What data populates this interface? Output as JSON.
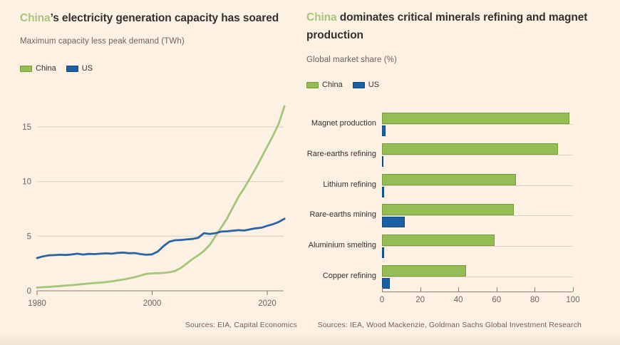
{
  "colors": {
    "background": "#fdf1e4",
    "heading_text": "#33302e",
    "muted_text": "#6b635b",
    "china_green": "#95bd55",
    "china_green_border": "#7a9a3b",
    "china_line_green": "#a4c57a",
    "title_highlight_green": "#a8c47c",
    "us_blue": "#1b5fa5",
    "us_blue_border": "#11497f",
    "us_line_blue": "#2a64a5",
    "gridline": "#ddd1c5",
    "axis_line": "#8a8075"
  },
  "chart_data": [
    {
      "type": "line",
      "title_highlight": "China",
      "title_rest": "’s electricity generation capacity has soared",
      "subtitle": "Maximum capacity less peak demand (TWh)",
      "legend": [
        "China",
        "US"
      ],
      "source": "Sources: EIA, Capital Economics",
      "x_start_year": 1980,
      "x_end_year": 2023,
      "x_ticks": [
        1980,
        2000,
        2020
      ],
      "y_ticks": [
        0,
        5,
        10,
        15
      ],
      "ylim": [
        0,
        17.5
      ],
      "grid": true,
      "series": [
        {
          "name": "China",
          "values": [
            0.3,
            0.33,
            0.36,
            0.4,
            0.44,
            0.48,
            0.52,
            0.57,
            0.62,
            0.67,
            0.72,
            0.75,
            0.8,
            0.87,
            0.95,
            1.04,
            1.14,
            1.25,
            1.4,
            1.55,
            1.6,
            1.62,
            1.64,
            1.7,
            1.82,
            2.1,
            2.5,
            2.9,
            3.25,
            3.65,
            4.2,
            5.0,
            5.8,
            6.6,
            7.6,
            8.6,
            9.4,
            10.3,
            11.2,
            12.2,
            13.2,
            14.2,
            15.3,
            16.9
          ]
        },
        {
          "name": "US",
          "values": [
            3.0,
            3.15,
            3.25,
            3.27,
            3.3,
            3.28,
            3.33,
            3.4,
            3.32,
            3.38,
            3.36,
            3.4,
            3.43,
            3.4,
            3.47,
            3.5,
            3.44,
            3.46,
            3.36,
            3.3,
            3.34,
            3.6,
            4.1,
            4.5,
            4.63,
            4.65,
            4.7,
            4.75,
            4.85,
            5.28,
            5.2,
            5.28,
            5.42,
            5.45,
            5.5,
            5.55,
            5.52,
            5.62,
            5.72,
            5.78,
            5.95,
            6.1,
            6.3,
            6.6
          ]
        }
      ]
    },
    {
      "type": "bar",
      "orientation": "horizontal",
      "title_highlight": "China",
      "title_rest": " dominates critical minerals refining and magnet",
      "title_line2": "production",
      "subtitle": "Global market share (%)",
      "legend": [
        "China",
        "US"
      ],
      "source": "Sources: IEA, Wood Mackenzie, Goldman Sachs Global Investment Research",
      "categories": [
        "Magnet production",
        "Rare-earths refining",
        "Lithium refining",
        "Rare-earths mining",
        "Aluminium smelting",
        "Copper refining"
      ],
      "series": [
        {
          "name": "China",
          "values": [
            98,
            92,
            70,
            69,
            59,
            44
          ]
        },
        {
          "name": "US",
          "values": [
            2,
            0.5,
            1,
            12,
            1,
            4
          ]
        }
      ],
      "x_ticks": [
        0,
        20,
        40,
        60,
        80,
        100
      ],
      "xlim": [
        0,
        100
      ],
      "grid": false
    }
  ]
}
